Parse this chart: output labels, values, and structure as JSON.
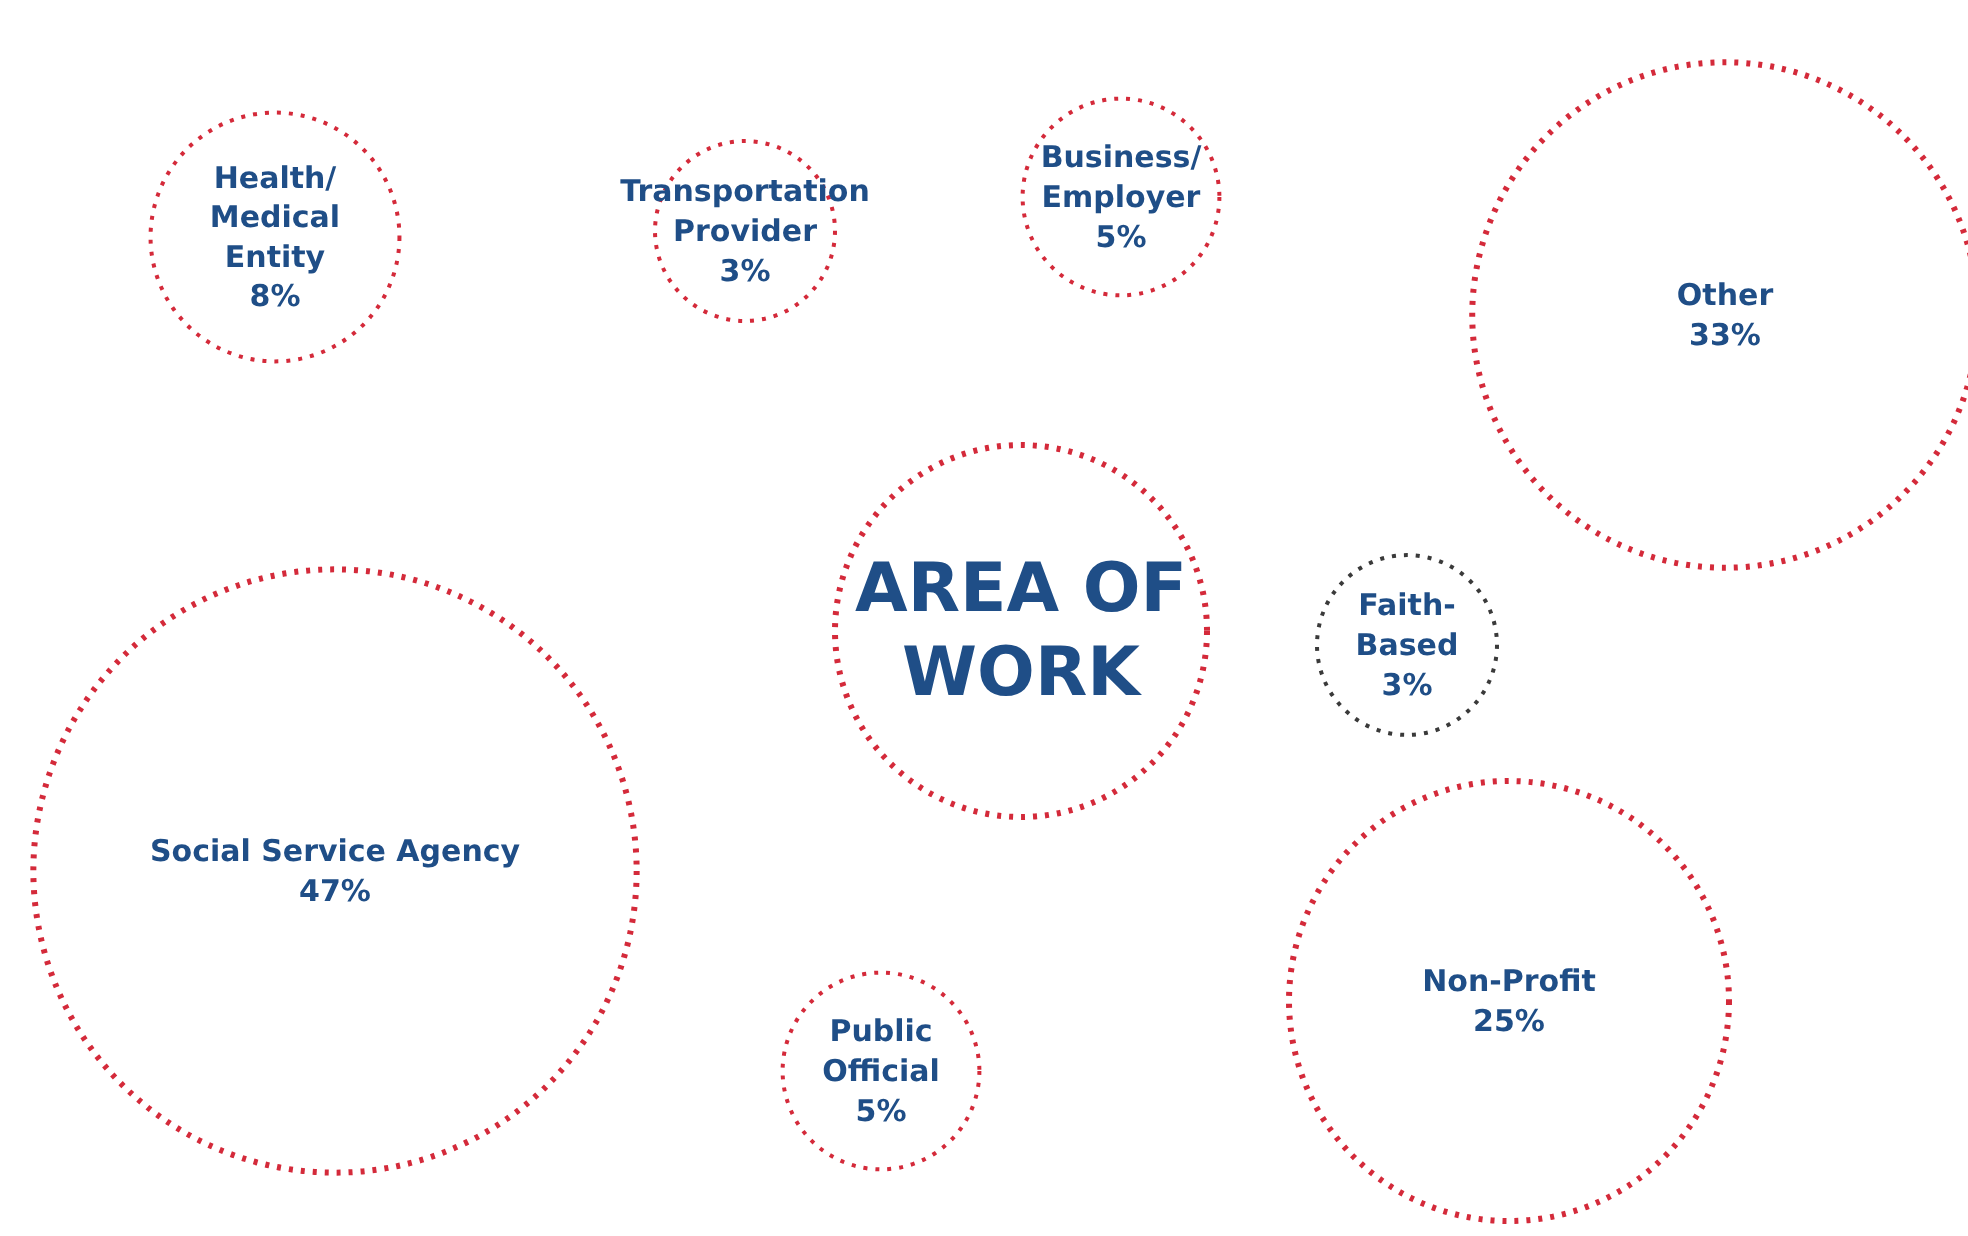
{
  "chart_data": {
    "type": "other",
    "title": "AREA OF\nWORK",
    "categories": [
      "Health/\nMedical\nEntity",
      "Transportation\nProvider",
      "Business/\nEmployer",
      "Other",
      "Faith-\nBased",
      "Social Service Agency",
      "Non-Profit",
      "Public\nOfficial"
    ],
    "values": [
      8,
      3,
      5,
      33,
      3,
      47,
      25,
      5
    ],
    "value_labels": [
      "8%",
      "3%",
      "5%",
      "33%",
      "3%",
      "47%",
      "25%",
      "5%"
    ],
    "colors": [
      "#d42a3a",
      "#d42a3a",
      "#d42a3a",
      "#d42a3a",
      "#3a3a3a",
      "#d42a3a",
      "#d42a3a",
      "#d42a3a"
    ],
    "data_labels": true
  }
}
